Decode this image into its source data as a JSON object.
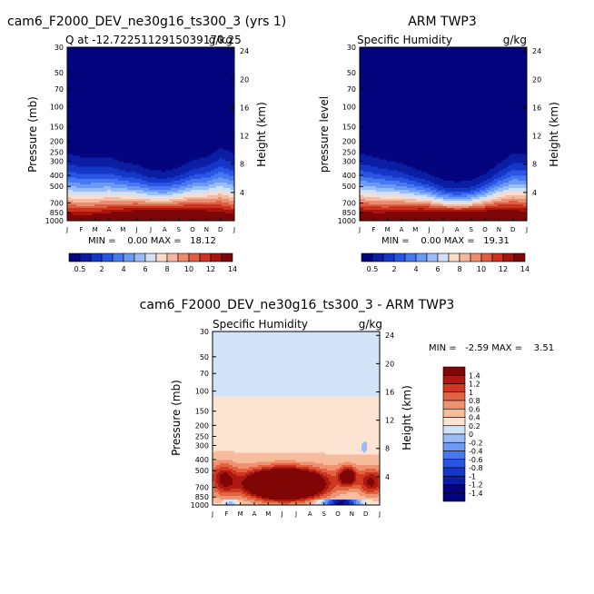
{
  "chart_data": [
    {
      "type": "heatmap",
      "title": "cam6_F2000_DEV_ne30g16_ts300_3 (yrs 1)",
      "subtitle_left": "Q at -12.7225112915039170.25",
      "subtitle_right": "g/kg",
      "xlabel": "",
      "ylabel": "Pressure (mb)",
      "ylabel_right": "Height (km)",
      "months": [
        "J",
        "F",
        "M",
        "A",
        "M",
        "J",
        "J",
        "A",
        "S",
        "O",
        "N",
        "D",
        "J"
      ],
      "pressure_ticks": [
        "30",
        "50",
        "70",
        "100",
        "150",
        "200",
        "250",
        "300",
        "400",
        "500",
        "700",
        "850",
        "1000"
      ],
      "height_ticks": [
        "24",
        "20",
        "16",
        "12",
        "8",
        "4"
      ],
      "ylim": [
        1000,
        30
      ],
      "stats": "MIN =    0.00 MAX =   18.12",
      "min": 0.0,
      "max": 18.12,
      "colorbar_labels": [
        "0.5",
        "2",
        "4",
        "6",
        "8",
        "10",
        "12",
        "14"
      ],
      "boundary_layer_top_mb": [
        280,
        300,
        300,
        300,
        330,
        350,
        390,
        400,
        370,
        320,
        300,
        250,
        280
      ]
    },
    {
      "type": "heatmap",
      "title": "ARM TWP3",
      "subtitle_left": "Specific Humidity",
      "subtitle_right": "g/kg",
      "ylabel": "pressure level",
      "ylabel_right": "Height (km)",
      "months": [
        "J",
        "F",
        "M",
        "A",
        "M",
        "J",
        "J",
        "A",
        "S",
        "O",
        "N",
        "D",
        "J"
      ],
      "pressure_ticks": [
        "30",
        "50",
        "70",
        "100",
        "150",
        "200",
        "250",
        "300",
        "400",
        "500",
        "700",
        "850",
        "1000"
      ],
      "height_ticks": [
        "24",
        "20",
        "16",
        "12",
        "8",
        "4"
      ],
      "ylim": [
        1000,
        30
      ],
      "stats": "MIN =    0.00 MAX =   19.31",
      "min": 0.0,
      "max": 19.31,
      "colorbar_labels": [
        "0.5",
        "2",
        "4",
        "6",
        "8",
        "10",
        "12",
        "14"
      ],
      "boundary_layer_top_mb": [
        280,
        300,
        320,
        340,
        380,
        420,
        480,
        500,
        480,
        420,
        340,
        280,
        280
      ]
    },
    {
      "type": "heatmap",
      "title": "cam6_F2000_DEV_ne30g16_ts300_3 - ARM TWP3",
      "subtitle_left": "Specific Humidity",
      "subtitle_right": "g/kg",
      "ylabel": "Pressure (mb)",
      "ylabel_right": "Height (km)",
      "months": [
        "J",
        "F",
        "M",
        "A",
        "M",
        "J",
        "J",
        "A",
        "S",
        "O",
        "N",
        "D",
        "J"
      ],
      "pressure_ticks": [
        "30",
        "50",
        "70",
        "100",
        "150",
        "200",
        "250",
        "300",
        "400",
        "500",
        "700",
        "850",
        "1000"
      ],
      "height_ticks": [
        "24",
        "20",
        "16",
        "12",
        "8",
        "4"
      ],
      "ylim": [
        1000,
        30
      ],
      "stats": "MIN =   -2.59 MAX =    3.51",
      "min": -2.59,
      "max": 3.51,
      "colorbar_labels": [
        "1.4",
        "1.2",
        "1",
        "0.8",
        "0.6",
        "0.4",
        "0.2",
        "0",
        "-0.2",
        "-0.4",
        "-0.6",
        "-0.8",
        "-1",
        "-1.2",
        "-1.4"
      ]
    }
  ],
  "palettes": {
    "seq": [
      "#04047e",
      "#0b1ea3",
      "#1437c8",
      "#2a55e3",
      "#4878f0",
      "#6c99f2",
      "#9cbcf5",
      "#d2e0f6",
      "#fbdccb",
      "#f6b89e",
      "#ee8d6e",
      "#e05d42",
      "#cc3220",
      "#a81410",
      "#7e0606"
    ],
    "diff": [
      "#04047e",
      "#0b1ea3",
      "#1437c8",
      "#2a55e3",
      "#4878f0",
      "#6c99f2",
      "#9cbcf5",
      "#d2e3f7",
      "#fde3d1",
      "#f6bc9c",
      "#ee936f",
      "#e36341",
      "#cf3820",
      "#ad1810",
      "#800606"
    ]
  }
}
